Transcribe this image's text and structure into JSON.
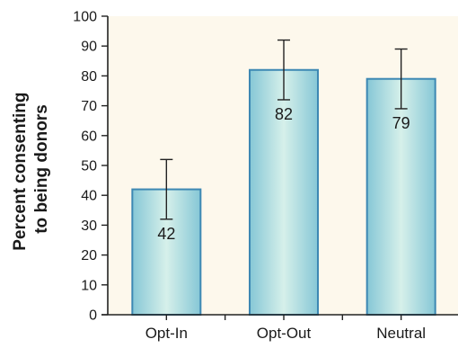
{
  "colors": {
    "plot_background": "#fdf8ec",
    "bar_edge": "#3d88b3",
    "bar_center": "#d6f0ea",
    "bar_side": "#86c7d6",
    "axis": "#222222"
  },
  "chart_data": {
    "type": "bar",
    "categories": [
      "Opt-In",
      "Opt-Out",
      "Neutral"
    ],
    "values": [
      42,
      82,
      79
    ],
    "value_labels": [
      "42",
      "82",
      "79"
    ],
    "error_bars": [
      [
        32,
        52
      ],
      [
        72,
        92
      ],
      [
        69,
        89
      ]
    ],
    "title": "",
    "xlabel": "",
    "ylabel_lines": [
      "Percent consenting",
      "to being donors"
    ],
    "ylim": [
      0,
      100
    ],
    "yticks": [
      0,
      10,
      20,
      30,
      40,
      50,
      60,
      70,
      80,
      90,
      100
    ],
    "grid": false,
    "legend": "none"
  }
}
